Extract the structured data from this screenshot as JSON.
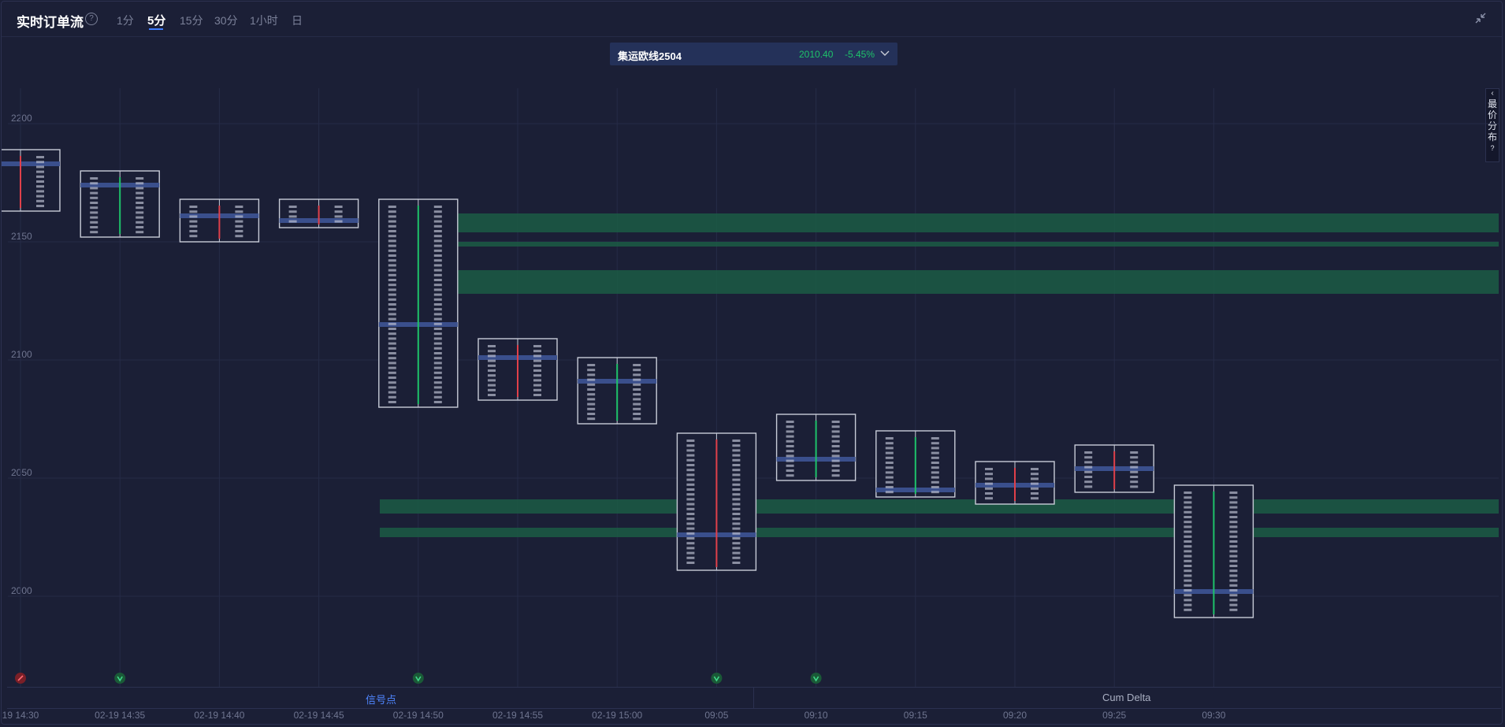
{
  "header": {
    "title": "实时订单流",
    "timeframes": [
      "1分",
      "5分",
      "15分",
      "30分",
      "1小时",
      "日"
    ],
    "active_timeframe": "5分"
  },
  "contract": {
    "name": "集运欧线2504",
    "price": "2010.40",
    "change": "-5.45%"
  },
  "side_panel": {
    "label": [
      "最",
      "价",
      "分",
      "布"
    ],
    "help": "?"
  },
  "bottom_tabs": {
    "signal": "信号点",
    "cum_delta": "Cum Delta"
  },
  "colors": {
    "bg": "#1b1f36",
    "up": "#1ec26a",
    "down": "#e0404a",
    "accent": "#3f7dff",
    "poc": "#3a4f8c",
    "zone": "#1b5c44"
  },
  "chart_data": {
    "type": "footprint",
    "y_ticks": [
      2200,
      2150,
      2100,
      2050,
      2000
    ],
    "ylim": [
      1965,
      2215
    ],
    "x_labels": [
      "19 14:30",
      "02-19 14:35",
      "02-19 14:40",
      "02-19 14:45",
      "02-19 14:50",
      "02-19 14:55",
      "02-19 15:00",
      "09:05",
      "09:10",
      "09:15",
      "09:20",
      "09:25",
      "09:30"
    ],
    "bars": [
      {
        "time": "19 14:30",
        "high": 2189,
        "low": 2163,
        "poc": 2183,
        "color": "down"
      },
      {
        "time": "02-19 14:35",
        "high": 2180,
        "low": 2152,
        "poc": 2174,
        "color": "up"
      },
      {
        "time": "02-19 14:40",
        "high": 2168,
        "low": 2150,
        "poc": 2161,
        "color": "down"
      },
      {
        "time": "02-19 14:45",
        "high": 2168,
        "low": 2156,
        "poc": 2159,
        "color": "down"
      },
      {
        "time": "02-19 14:50",
        "high": 2168,
        "low": 2080,
        "poc": 2115,
        "color": "up"
      },
      {
        "time": "02-19 14:55",
        "high": 2109,
        "low": 2083,
        "poc": 2101,
        "color": "down"
      },
      {
        "time": "02-19 15:00",
        "high": 2101,
        "low": 2073,
        "poc": 2091,
        "color": "up"
      },
      {
        "time": "09:05",
        "high": 2069,
        "low": 2011,
        "poc": 2026,
        "color": "down"
      },
      {
        "time": "09:10",
        "high": 2077,
        "low": 2049,
        "poc": 2058,
        "color": "up"
      },
      {
        "time": "09:15",
        "high": 2070,
        "low": 2042,
        "poc": 2045,
        "color": "up"
      },
      {
        "time": "09:20",
        "high": 2057,
        "low": 2039,
        "poc": 2047,
        "color": "down"
      },
      {
        "time": "09:25",
        "high": 2064,
        "low": 2044,
        "poc": 2054,
        "color": "down"
      },
      {
        "time": "09:30",
        "high": 2047,
        "low": 1991,
        "poc": 2002,
        "color": "up"
      }
    ],
    "zones": [
      {
        "from": 2154,
        "to": 2162
      },
      {
        "from": 2148,
        "to": 2150
      },
      {
        "from": 2128,
        "to": 2138
      },
      {
        "from": 2035,
        "to": 2041
      },
      {
        "from": 2025,
        "to": 2029
      }
    ],
    "signals": [
      {
        "time": "19 14:30",
        "type": "sell"
      },
      {
        "time": "02-19 14:35",
        "type": "buy"
      },
      {
        "time": "02-19 14:50",
        "type": "buy"
      },
      {
        "time": "09:05",
        "type": "buy"
      },
      {
        "time": "09:10",
        "type": "buy"
      }
    ]
  }
}
